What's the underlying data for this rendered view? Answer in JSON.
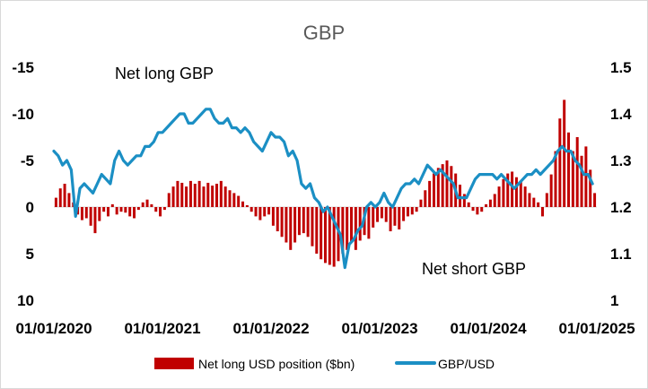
{
  "chart_data": {
    "type": "bar+line",
    "title": "GBP",
    "x_tick_labels": [
      "01/01/2020",
      "01/01/2021",
      "01/01/2022",
      "01/01/2023",
      "01/01/2024",
      "01/01/2025"
    ],
    "x_range": [
      2020.0,
      2025.0
    ],
    "y_left": {
      "ticks": [
        -15,
        -10,
        -5,
        0,
        5,
        10
      ],
      "range": [
        -15,
        10
      ],
      "inverted": true
    },
    "y_right": {
      "ticks": [
        1.5,
        1.4,
        1.3,
        1.2,
        1.1,
        1.0
      ],
      "range": [
        1.0,
        1.5
      ]
    },
    "annotations": [
      {
        "text": "Net long GBP"
      },
      {
        "text": "Net short GBP"
      }
    ],
    "colors": {
      "bars": "#c00000",
      "line": "#1b8fc4",
      "title": "#595959"
    },
    "legend": {
      "placement": "bottom"
    },
    "series": [
      {
        "name": "Net long USD position ($bn)",
        "kind": "bar",
        "axis": "left",
        "color": "#c00000",
        "points": [
          [
            2020.0,
            -1.0
          ],
          [
            2020.04,
            -2.0
          ],
          [
            2020.08,
            -2.5
          ],
          [
            2020.12,
            -1.5
          ],
          [
            2020.16,
            -0.5
          ],
          [
            2020.2,
            0.8
          ],
          [
            2020.24,
            1.4
          ],
          [
            2020.28,
            1.2
          ],
          [
            2020.32,
            2.0
          ],
          [
            2020.36,
            2.8
          ],
          [
            2020.4,
            1.5
          ],
          [
            2020.44,
            0.5
          ],
          [
            2020.48,
            1.0
          ],
          [
            2020.52,
            -0.3
          ],
          [
            2020.56,
            0.8
          ],
          [
            2020.6,
            0.5
          ],
          [
            2020.64,
            0.6
          ],
          [
            2020.68,
            1.0
          ],
          [
            2020.72,
            1.2
          ],
          [
            2020.76,
            0.3
          ],
          [
            2020.8,
            -0.5
          ],
          [
            2020.84,
            -0.8
          ],
          [
            2020.88,
            -0.3
          ],
          [
            2020.92,
            0.5
          ],
          [
            2020.96,
            1.0
          ],
          [
            2021.0,
            0.3
          ],
          [
            2021.04,
            -1.5
          ],
          [
            2021.08,
            -2.2
          ],
          [
            2021.12,
            -2.8
          ],
          [
            2021.16,
            -2.6
          ],
          [
            2021.2,
            -2.2
          ],
          [
            2021.24,
            -2.8
          ],
          [
            2021.28,
            -2.5
          ],
          [
            2021.32,
            -2.8
          ],
          [
            2021.36,
            -2.2
          ],
          [
            2021.4,
            -2.6
          ],
          [
            2021.44,
            -2.3
          ],
          [
            2021.48,
            -2.5
          ],
          [
            2021.52,
            -2.8
          ],
          [
            2021.56,
            -2.2
          ],
          [
            2021.6,
            -1.8
          ],
          [
            2021.64,
            -1.5
          ],
          [
            2021.68,
            -1.2
          ],
          [
            2021.72,
            -0.6
          ],
          [
            2021.76,
            -0.2
          ],
          [
            2021.8,
            0.5
          ],
          [
            2021.84,
            1.0
          ],
          [
            2021.88,
            1.4
          ],
          [
            2021.92,
            1.0
          ],
          [
            2021.96,
            0.8
          ],
          [
            2022.0,
            2.0
          ],
          [
            2022.04,
            2.6
          ],
          [
            2022.08,
            3.2
          ],
          [
            2022.12,
            3.8
          ],
          [
            2022.16,
            4.6
          ],
          [
            2022.2,
            3.8
          ],
          [
            2022.24,
            3.0
          ],
          [
            2022.28,
            2.8
          ],
          [
            2022.32,
            3.2
          ],
          [
            2022.36,
            4.2
          ],
          [
            2022.4,
            5.0
          ],
          [
            2022.44,
            5.6
          ],
          [
            2022.48,
            6.0
          ],
          [
            2022.52,
            6.2
          ],
          [
            2022.56,
            6.4
          ],
          [
            2022.6,
            5.8
          ],
          [
            2022.64,
            5.0
          ],
          [
            2022.68,
            4.6
          ],
          [
            2022.72,
            3.8
          ],
          [
            2022.76,
            4.6
          ],
          [
            2022.8,
            3.6
          ],
          [
            2022.84,
            3.0
          ],
          [
            2022.88,
            3.4
          ],
          [
            2022.92,
            2.2
          ],
          [
            2022.96,
            1.6
          ],
          [
            2023.0,
            1.2
          ],
          [
            2023.04,
            1.6
          ],
          [
            2023.08,
            2.6
          ],
          [
            2023.12,
            2.0
          ],
          [
            2023.16,
            2.4
          ],
          [
            2023.2,
            1.5
          ],
          [
            2023.24,
            1.0
          ],
          [
            2023.28,
            0.8
          ],
          [
            2023.32,
            0.5
          ],
          [
            2023.36,
            -0.8
          ],
          [
            2023.4,
            -1.8
          ],
          [
            2023.44,
            -2.8
          ],
          [
            2023.48,
            -3.6
          ],
          [
            2023.52,
            -4.2
          ],
          [
            2023.56,
            -4.6
          ],
          [
            2023.6,
            -5.0
          ],
          [
            2023.64,
            -4.4
          ],
          [
            2023.68,
            -3.6
          ],
          [
            2023.72,
            -2.4
          ],
          [
            2023.76,
            -1.4
          ],
          [
            2023.8,
            -0.5
          ],
          [
            2023.84,
            0.4
          ],
          [
            2023.88,
            0.8
          ],
          [
            2023.92,
            0.5
          ],
          [
            2023.96,
            -0.3
          ],
          [
            2024.0,
            -0.8
          ],
          [
            2024.04,
            -1.4
          ],
          [
            2024.08,
            -2.2
          ],
          [
            2024.12,
            -3.0
          ],
          [
            2024.16,
            -3.6
          ],
          [
            2024.2,
            -3.8
          ],
          [
            2024.24,
            -3.2
          ],
          [
            2024.28,
            -2.8
          ],
          [
            2024.32,
            -2.2
          ],
          [
            2024.36,
            -1.5
          ],
          [
            2024.4,
            -1.0
          ],
          [
            2024.44,
            -0.5
          ],
          [
            2024.48,
            1.0
          ],
          [
            2024.52,
            -1.5
          ],
          [
            2024.56,
            -3.5
          ],
          [
            2024.6,
            -6.0
          ],
          [
            2024.64,
            -9.5
          ],
          [
            2024.68,
            -11.5
          ],
          [
            2024.72,
            -8.0
          ],
          [
            2024.76,
            -6.0
          ],
          [
            2024.8,
            -7.5
          ],
          [
            2024.84,
            -5.5
          ],
          [
            2024.88,
            -6.5
          ],
          [
            2024.92,
            -4.0
          ],
          [
            2024.96,
            -1.5
          ]
        ]
      },
      {
        "name": "GBP/USD",
        "kind": "line",
        "axis": "right",
        "color": "#1b8fc4",
        "points": [
          [
            2020.0,
            1.32
          ],
          [
            2020.04,
            1.31
          ],
          [
            2020.08,
            1.29
          ],
          [
            2020.12,
            1.3
          ],
          [
            2020.16,
            1.28
          ],
          [
            2020.2,
            1.18
          ],
          [
            2020.24,
            1.24
          ],
          [
            2020.28,
            1.25
          ],
          [
            2020.32,
            1.24
          ],
          [
            2020.36,
            1.23
          ],
          [
            2020.4,
            1.25
          ],
          [
            2020.44,
            1.27
          ],
          [
            2020.48,
            1.26
          ],
          [
            2020.52,
            1.25
          ],
          [
            2020.56,
            1.3
          ],
          [
            2020.6,
            1.32
          ],
          [
            2020.64,
            1.3
          ],
          [
            2020.68,
            1.29
          ],
          [
            2020.72,
            1.3
          ],
          [
            2020.76,
            1.31
          ],
          [
            2020.8,
            1.31
          ],
          [
            2020.84,
            1.33
          ],
          [
            2020.88,
            1.33
          ],
          [
            2020.92,
            1.34
          ],
          [
            2020.96,
            1.36
          ],
          [
            2021.0,
            1.36
          ],
          [
            2021.04,
            1.37
          ],
          [
            2021.08,
            1.38
          ],
          [
            2021.12,
            1.39
          ],
          [
            2021.16,
            1.4
          ],
          [
            2021.2,
            1.4
          ],
          [
            2021.24,
            1.38
          ],
          [
            2021.28,
            1.38
          ],
          [
            2021.32,
            1.39
          ],
          [
            2021.36,
            1.4
          ],
          [
            2021.4,
            1.41
          ],
          [
            2021.44,
            1.41
          ],
          [
            2021.48,
            1.39
          ],
          [
            2021.52,
            1.38
          ],
          [
            2021.56,
            1.38
          ],
          [
            2021.6,
            1.39
          ],
          [
            2021.64,
            1.37
          ],
          [
            2021.68,
            1.37
          ],
          [
            2021.72,
            1.36
          ],
          [
            2021.76,
            1.37
          ],
          [
            2021.8,
            1.36
          ],
          [
            2021.84,
            1.34
          ],
          [
            2021.88,
            1.33
          ],
          [
            2021.92,
            1.32
          ],
          [
            2021.96,
            1.34
          ],
          [
            2022.0,
            1.36
          ],
          [
            2022.04,
            1.35
          ],
          [
            2022.08,
            1.35
          ],
          [
            2022.12,
            1.34
          ],
          [
            2022.16,
            1.31
          ],
          [
            2022.2,
            1.32
          ],
          [
            2022.24,
            1.3
          ],
          [
            2022.28,
            1.25
          ],
          [
            2022.32,
            1.24
          ],
          [
            2022.36,
            1.25
          ],
          [
            2022.4,
            1.22
          ],
          [
            2022.44,
            1.21
          ],
          [
            2022.48,
            1.19
          ],
          [
            2022.52,
            1.2
          ],
          [
            2022.56,
            1.18
          ],
          [
            2022.6,
            1.16
          ],
          [
            2022.64,
            1.14
          ],
          [
            2022.68,
            1.07
          ],
          [
            2022.72,
            1.12
          ],
          [
            2022.76,
            1.13
          ],
          [
            2022.8,
            1.15
          ],
          [
            2022.84,
            1.16
          ],
          [
            2022.88,
            1.2
          ],
          [
            2022.92,
            1.21
          ],
          [
            2022.96,
            1.2
          ],
          [
            2023.0,
            1.21
          ],
          [
            2023.04,
            1.23
          ],
          [
            2023.08,
            1.21
          ],
          [
            2023.12,
            1.2
          ],
          [
            2023.16,
            1.22
          ],
          [
            2023.2,
            1.24
          ],
          [
            2023.24,
            1.25
          ],
          [
            2023.28,
            1.25
          ],
          [
            2023.32,
            1.26
          ],
          [
            2023.36,
            1.25
          ],
          [
            2023.4,
            1.27
          ],
          [
            2023.44,
            1.29
          ],
          [
            2023.48,
            1.28
          ],
          [
            2023.52,
            1.27
          ],
          [
            2023.56,
            1.28
          ],
          [
            2023.6,
            1.27
          ],
          [
            2023.64,
            1.26
          ],
          [
            2023.68,
            1.25
          ],
          [
            2023.72,
            1.22
          ],
          [
            2023.76,
            1.22
          ],
          [
            2023.8,
            1.22
          ],
          [
            2023.84,
            1.24
          ],
          [
            2023.88,
            1.26
          ],
          [
            2023.92,
            1.27
          ],
          [
            2023.96,
            1.27
          ],
          [
            2024.0,
            1.27
          ],
          [
            2024.04,
            1.27
          ],
          [
            2024.08,
            1.26
          ],
          [
            2024.12,
            1.27
          ],
          [
            2024.16,
            1.26
          ],
          [
            2024.2,
            1.25
          ],
          [
            2024.24,
            1.24
          ],
          [
            2024.28,
            1.25
          ],
          [
            2024.32,
            1.26
          ],
          [
            2024.36,
            1.27
          ],
          [
            2024.4,
            1.27
          ],
          [
            2024.44,
            1.28
          ],
          [
            2024.48,
            1.27
          ],
          [
            2024.52,
            1.28
          ],
          [
            2024.56,
            1.29
          ],
          [
            2024.6,
            1.3
          ],
          [
            2024.64,
            1.32
          ],
          [
            2024.68,
            1.33
          ],
          [
            2024.72,
            1.32
          ],
          [
            2024.76,
            1.32
          ],
          [
            2024.8,
            1.3
          ],
          [
            2024.84,
            1.29
          ],
          [
            2024.88,
            1.27
          ],
          [
            2024.92,
            1.27
          ],
          [
            2024.96,
            1.25
          ]
        ]
      }
    ]
  }
}
